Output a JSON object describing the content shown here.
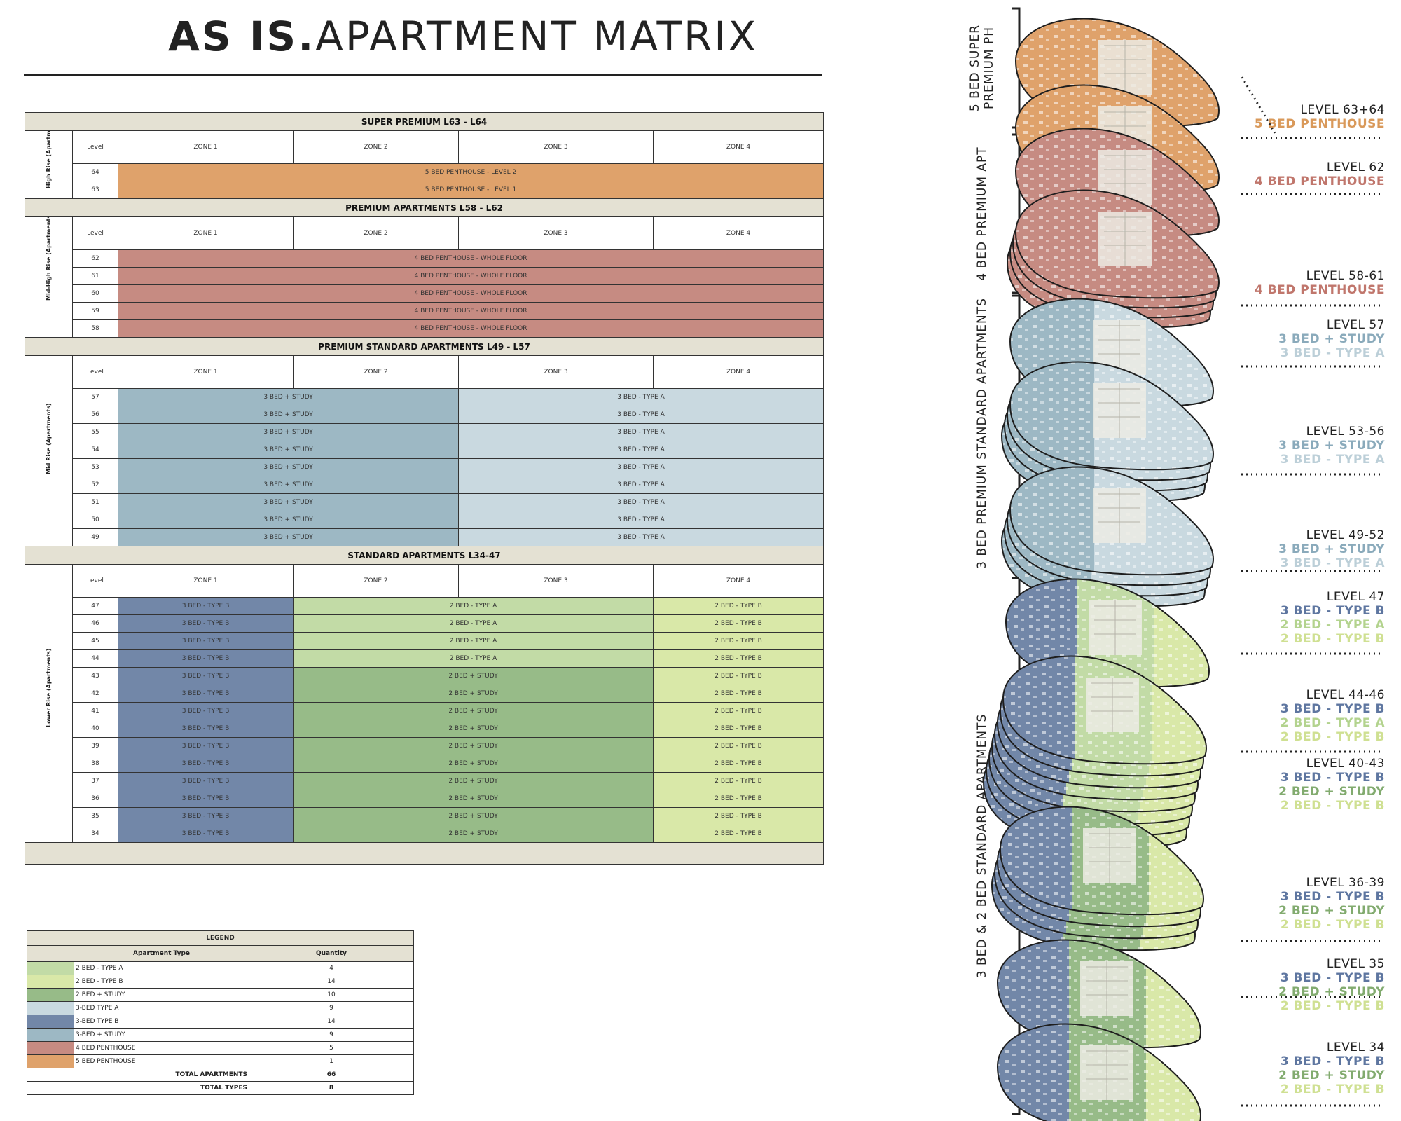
{
  "title": {
    "bold": "AS IS.",
    "light": "APARTMENT MATRIX"
  },
  "colors": {
    "5 BED PENTHOUSE": "#dfa26b",
    "4 BED PENTHOUSE": "#c68b82",
    "3 BED + STUDY": "#9db8c4",
    "3 BED - TYPE A": "#c9d9e0",
    "3 BED - TYPE B": "#7287a8",
    "2 BED - TYPE A": "#c2dba6",
    "2 BED - TYPE B": "#d9e8a8",
    "2 BED + STUDY": "#97bb88"
  },
  "matrix": {
    "level_header": "Level",
    "zones": [
      "ZONE 1",
      "ZONE 2",
      "ZONE 3",
      "ZONE 4"
    ],
    "sections": [
      {
        "title": "SUPER PREMIUM L63 - L64",
        "group_label": "High Rise (Apartments)",
        "rows": [
          {
            "level": "64",
            "cells": [
              {
                "label": "5 BED PENTHOUSE - LEVEL 2",
                "span": 4,
                "type": "5 BED PENTHOUSE"
              }
            ]
          },
          {
            "level": "63",
            "cells": [
              {
                "label": "5 BED PENTHOUSE - LEVEL 1",
                "span": 4,
                "type": "5 BED PENTHOUSE"
              }
            ]
          }
        ]
      },
      {
        "title": "PREMIUM APARTMENTS L58 - L62",
        "group_label": "Mid-High Rise (Apartments)",
        "rows": [
          {
            "level": "62",
            "cells": [
              {
                "label": "4 BED PENTHOUSE - WHOLE FLOOR",
                "span": 4,
                "type": "4 BED PENTHOUSE"
              }
            ]
          },
          {
            "level": "61",
            "cells": [
              {
                "label": "4 BED PENTHOUSE - WHOLE FLOOR",
                "span": 4,
                "type": "4 BED PENTHOUSE"
              }
            ]
          },
          {
            "level": "60",
            "cells": [
              {
                "label": "4 BED PENTHOUSE - WHOLE FLOOR",
                "span": 4,
                "type": "4 BED PENTHOUSE"
              }
            ]
          },
          {
            "level": "59",
            "cells": [
              {
                "label": "4 BED PENTHOUSE - WHOLE FLOOR",
                "span": 4,
                "type": "4 BED PENTHOUSE"
              }
            ]
          },
          {
            "level": "58",
            "cells": [
              {
                "label": "4 BED PENTHOUSE - WHOLE FLOOR",
                "span": 4,
                "type": "4 BED PENTHOUSE"
              }
            ]
          }
        ]
      },
      {
        "title": "PREMIUM STANDARD APARTMENTS L49 - L57",
        "group_label": "Mid Rise (Apartments)",
        "rows": [
          {
            "level": "57",
            "cells": [
              {
                "label": "3 BED + STUDY",
                "span": 2,
                "type": "3 BED + STUDY"
              },
              {
                "label": "3 BED - TYPE A",
                "span": 2,
                "type": "3 BED - TYPE A"
              }
            ]
          },
          {
            "level": "56",
            "cells": [
              {
                "label": "3 BED + STUDY",
                "span": 2,
                "type": "3 BED + STUDY"
              },
              {
                "label": "3 BED - TYPE A",
                "span": 2,
                "type": "3 BED - TYPE A"
              }
            ]
          },
          {
            "level": "55",
            "cells": [
              {
                "label": "3 BED + STUDY",
                "span": 2,
                "type": "3 BED + STUDY"
              },
              {
                "label": "3 BED - TYPE A",
                "span": 2,
                "type": "3 BED - TYPE A"
              }
            ]
          },
          {
            "level": "54",
            "cells": [
              {
                "label": "3 BED + STUDY",
                "span": 2,
                "type": "3 BED + STUDY"
              },
              {
                "label": "3 BED - TYPE A",
                "span": 2,
                "type": "3 BED - TYPE A"
              }
            ]
          },
          {
            "level": "53",
            "cells": [
              {
                "label": "3 BED + STUDY",
                "span": 2,
                "type": "3 BED + STUDY"
              },
              {
                "label": "3 BED - TYPE A",
                "span": 2,
                "type": "3 BED - TYPE A"
              }
            ]
          },
          {
            "level": "52",
            "cells": [
              {
                "label": "3 BED + STUDY",
                "span": 2,
                "type": "3 BED + STUDY"
              },
              {
                "label": "3 BED - TYPE A",
                "span": 2,
                "type": "3 BED - TYPE A"
              }
            ]
          },
          {
            "level": "51",
            "cells": [
              {
                "label": "3 BED + STUDY",
                "span": 2,
                "type": "3 BED + STUDY"
              },
              {
                "label": "3 BED - TYPE A",
                "span": 2,
                "type": "3 BED - TYPE A"
              }
            ]
          },
          {
            "level": "50",
            "cells": [
              {
                "label": "3 BED + STUDY",
                "span": 2,
                "type": "3 BED + STUDY"
              },
              {
                "label": "3 BED - TYPE A",
                "span": 2,
                "type": "3 BED - TYPE A"
              }
            ]
          },
          {
            "level": "49",
            "cells": [
              {
                "label": "3 BED + STUDY",
                "span": 2,
                "type": "3 BED + STUDY"
              },
              {
                "label": "3 BED - TYPE A",
                "span": 2,
                "type": "3 BED - TYPE A"
              }
            ]
          }
        ]
      },
      {
        "title": "STANDARD APARTMENTS L34-47",
        "group_label": "Lower Rise (Apartments)",
        "rows": [
          {
            "level": "47",
            "cells": [
              {
                "label": "3 BED - TYPE B",
                "span": 1,
                "type": "3 BED - TYPE B"
              },
              {
                "label": "2 BED - TYPE A",
                "span": 2,
                "type": "2 BED - TYPE A"
              },
              {
                "label": "2 BED - TYPE B",
                "span": 1,
                "type": "2 BED - TYPE B"
              }
            ]
          },
          {
            "level": "46",
            "cells": [
              {
                "label": "3 BED - TYPE B",
                "span": 1,
                "type": "3 BED - TYPE B"
              },
              {
                "label": "2 BED - TYPE A",
                "span": 2,
                "type": "2 BED - TYPE A"
              },
              {
                "label": "2 BED - TYPE B",
                "span": 1,
                "type": "2 BED - TYPE B"
              }
            ]
          },
          {
            "level": "45",
            "cells": [
              {
                "label": "3 BED - TYPE B",
                "span": 1,
                "type": "3 BED - TYPE B"
              },
              {
                "label": "2 BED - TYPE A",
                "span": 2,
                "type": "2 BED - TYPE A"
              },
              {
                "label": "2 BED - TYPE B",
                "span": 1,
                "type": "2 BED - TYPE B"
              }
            ]
          },
          {
            "level": "44",
            "cells": [
              {
                "label": "3 BED - TYPE B",
                "span": 1,
                "type": "3 BED - TYPE B"
              },
              {
                "label": "2 BED - TYPE A",
                "span": 2,
                "type": "2 BED - TYPE A"
              },
              {
                "label": "2 BED - TYPE B",
                "span": 1,
                "type": "2 BED - TYPE B"
              }
            ]
          },
          {
            "level": "43",
            "cells": [
              {
                "label": "3 BED - TYPE B",
                "span": 1,
                "type": "3 BED - TYPE B"
              },
              {
                "label": "2 BED + STUDY",
                "span": 2,
                "type": "2 BED + STUDY"
              },
              {
                "label": "2 BED - TYPE B",
                "span": 1,
                "type": "2 BED - TYPE B"
              }
            ]
          },
          {
            "level": "42",
            "cells": [
              {
                "label": "3 BED - TYPE B",
                "span": 1,
                "type": "3 BED - TYPE B"
              },
              {
                "label": "2 BED + STUDY",
                "span": 2,
                "type": "2 BED + STUDY"
              },
              {
                "label": "2 BED - TYPE B",
                "span": 1,
                "type": "2 BED - TYPE B"
              }
            ]
          },
          {
            "level": "41",
            "cells": [
              {
                "label": "3 BED - TYPE B",
                "span": 1,
                "type": "3 BED - TYPE B"
              },
              {
                "label": "2 BED + STUDY",
                "span": 2,
                "type": "2 BED + STUDY"
              },
              {
                "label": "2 BED - TYPE B",
                "span": 1,
                "type": "2 BED - TYPE B"
              }
            ]
          },
          {
            "level": "40",
            "cells": [
              {
                "label": "3 BED - TYPE B",
                "span": 1,
                "type": "3 BED - TYPE B"
              },
              {
                "label": "2 BED + STUDY",
                "span": 2,
                "type": "2 BED + STUDY"
              },
              {
                "label": "2 BED - TYPE B",
                "span": 1,
                "type": "2 BED - TYPE B"
              }
            ]
          },
          {
            "level": "39",
            "cells": [
              {
                "label": "3 BED - TYPE B",
                "span": 1,
                "type": "3 BED - TYPE B"
              },
              {
                "label": "2 BED + STUDY",
                "span": 2,
                "type": "2 BED + STUDY"
              },
              {
                "label": "2 BED - TYPE B",
                "span": 1,
                "type": "2 BED - TYPE B"
              }
            ]
          },
          {
            "level": "38",
            "cells": [
              {
                "label": "3 BED - TYPE B",
                "span": 1,
                "type": "3 BED - TYPE B"
              },
              {
                "label": "2 BED + STUDY",
                "span": 2,
                "type": "2 BED + STUDY"
              },
              {
                "label": "2 BED - TYPE B",
                "span": 1,
                "type": "2 BED - TYPE B"
              }
            ]
          },
          {
            "level": "37",
            "cells": [
              {
                "label": "3 BED - TYPE B",
                "span": 1,
                "type": "3 BED - TYPE B"
              },
              {
                "label": "2 BED + STUDY",
                "span": 2,
                "type": "2 BED + STUDY"
              },
              {
                "label": "2 BED - TYPE B",
                "span": 1,
                "type": "2 BED - TYPE B"
              }
            ]
          },
          {
            "level": "36",
            "cells": [
              {
                "label": "3 BED - TYPE B",
                "span": 1,
                "type": "3 BED - TYPE B"
              },
              {
                "label": "2 BED + STUDY",
                "span": 2,
                "type": "2 BED + STUDY"
              },
              {
                "label": "2 BED - TYPE B",
                "span": 1,
                "type": "2 BED - TYPE B"
              }
            ]
          },
          {
            "level": "35",
            "cells": [
              {
                "label": "3 BED - TYPE B",
                "span": 1,
                "type": "3 BED - TYPE B"
              },
              {
                "label": "2 BED + STUDY",
                "span": 2,
                "type": "2 BED + STUDY"
              },
              {
                "label": "2 BED - TYPE B",
                "span": 1,
                "type": "2 BED - TYPE B"
              }
            ]
          },
          {
            "level": "34",
            "cells": [
              {
                "label": "3 BED - TYPE B",
                "span": 1,
                "type": "3 BED - TYPE B"
              },
              {
                "label": "2 BED + STUDY",
                "span": 2,
                "type": "2 BED + STUDY"
              },
              {
                "label": "2 BED - TYPE B",
                "span": 1,
                "type": "2 BED - TYPE B"
              }
            ]
          }
        ]
      }
    ]
  },
  "legend": {
    "title": "LEGEND",
    "col_type": "Apartment Type",
    "col_qty": "Quantity",
    "items": [
      {
        "label": "2 BED - TYPE A",
        "qty": "4",
        "color": "#c2dba6"
      },
      {
        "label": "2 BED - TYPE B",
        "qty": "14",
        "color": "#d9e8a8"
      },
      {
        "label": "2 BED + STUDY",
        "qty": "10",
        "color": "#97bb88"
      },
      {
        "label": "3-BED TYPE A",
        "qty": "9",
        "color": "#c9d9e0"
      },
      {
        "label": "3-BED TYPE B",
        "qty": "14",
        "color": "#7287a8"
      },
      {
        "label": "3-BED + STUDY",
        "qty": "9",
        "color": "#9db8c4"
      },
      {
        "label": "4 BED PENTHOUSE",
        "qty": "5",
        "color": "#c68b82"
      },
      {
        "label": "5 BED PENTHOUSE",
        "qty": "1",
        "color": "#dfa26b"
      }
    ],
    "total_apartments_label": "TOTAL APARTMENTS",
    "total_apartments": "66",
    "total_types_label": "TOTAL TYPES",
    "total_types": "8"
  },
  "diagram": {
    "groups": [
      {
        "label_lines": [
          "5 BED SUPER",
          "PREMIUM PH"
        ]
      },
      {
        "label_lines": [
          "4 BED PREMIUM APT"
        ]
      },
      {
        "label_lines": [
          "3 BED PREMIUM STANDARD APARTMENTS"
        ]
      },
      {
        "label_lines": [
          "3 BED & 2 BED STANDARD APARTMENTS"
        ]
      }
    ],
    "level_labels": [
      {
        "name": "LEVEL 63+64",
        "types": [
          {
            "text": "5 BED PENTHOUSE",
            "color": "#d9995a"
          }
        ]
      },
      {
        "name": "LEVEL 62",
        "types": [
          {
            "text": "4 BED PENTHOUSE",
            "color": "#c0766c"
          }
        ]
      },
      {
        "name": "LEVEL 58-61",
        "types": [
          {
            "text": "4 BED PENTHOUSE",
            "color": "#c0766c"
          }
        ]
      },
      {
        "name": "LEVEL 57",
        "types": [
          {
            "text": "3 BED + STUDY",
            "color": "#8aaabb"
          },
          {
            "text": "3 BED - TYPE A",
            "color": "#bccfd8"
          }
        ]
      },
      {
        "name": "LEVEL 53-56",
        "types": [
          {
            "text": "3 BED + STUDY",
            "color": "#8aaabb"
          },
          {
            "text": "3 BED - TYPE A",
            "color": "#bccfd8"
          }
        ]
      },
      {
        "name": "LEVEL 49-52",
        "types": [
          {
            "text": "3 BED + STUDY",
            "color": "#8aaabb"
          },
          {
            "text": "3 BED - TYPE A",
            "color": "#bccfd8"
          }
        ]
      },
      {
        "name": "LEVEL 47",
        "types": [
          {
            "text": "3 BED - TYPE B",
            "color": "#5e76a0"
          },
          {
            "text": "2 BED - TYPE A",
            "color": "#b3d38e"
          },
          {
            "text": "2 BED - TYPE B",
            "color": "#cfe092"
          }
        ]
      },
      {
        "name": "LEVEL 44-46",
        "types": [
          {
            "text": "3 BED - TYPE B",
            "color": "#5e76a0"
          },
          {
            "text": "2 BED - TYPE A",
            "color": "#b3d38e"
          },
          {
            "text": "2 BED - TYPE B",
            "color": "#cfe092"
          }
        ]
      },
      {
        "name": "LEVEL 40-43",
        "types": [
          {
            "text": "3 BED - TYPE B",
            "color": "#5e76a0"
          },
          {
            "text": "2 BED + STUDY",
            "color": "#82ab6f"
          },
          {
            "text": "2 BED - TYPE B",
            "color": "#cfe092"
          }
        ]
      },
      {
        "name": "LEVEL 36-39",
        "types": [
          {
            "text": "3 BED - TYPE B",
            "color": "#5e76a0"
          },
          {
            "text": "2 BED + STUDY",
            "color": "#82ab6f"
          },
          {
            "text": "2 BED - TYPE B",
            "color": "#cfe092"
          }
        ]
      },
      {
        "name": "LEVEL 35",
        "types": [
          {
            "text": "3 BED - TYPE B",
            "color": "#5e76a0"
          },
          {
            "text": "2 BED + STUDY",
            "color": "#82ab6f"
          },
          {
            "text": "2 BED - TYPE B",
            "color": "#cfe092"
          }
        ]
      },
      {
        "name": "LEVEL 34",
        "types": [
          {
            "text": "3 BED - TYPE B",
            "color": "#5e76a0"
          },
          {
            "text": "2 BED + STUDY",
            "color": "#82ab6f"
          },
          {
            "text": "2 BED - TYPE B",
            "color": "#cfe092"
          }
        ]
      }
    ]
  }
}
